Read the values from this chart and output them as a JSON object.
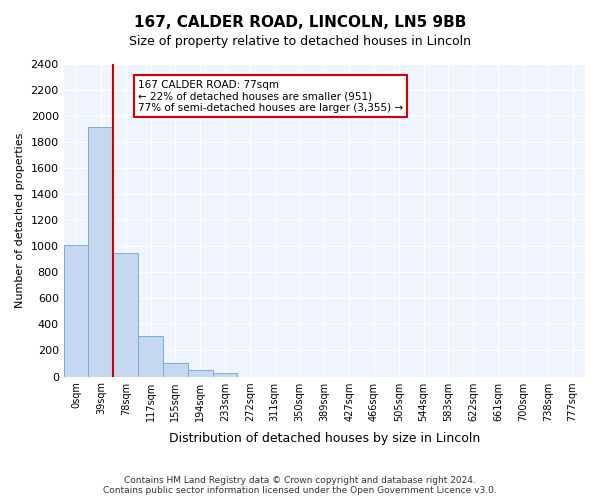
{
  "title_line1": "167, CALDER ROAD, LINCOLN, LN5 9BB",
  "title_line2": "Size of property relative to detached houses in Lincoln",
  "xlabel": "Distribution of detached houses by size in Lincoln",
  "ylabel": "Number of detached properties",
  "categories": [
    "0sqm",
    "39sqm",
    "78sqm",
    "117sqm",
    "155sqm",
    "194sqm",
    "233sqm",
    "272sqm",
    "311sqm",
    "350sqm",
    "389sqm",
    "427sqm",
    "466sqm",
    "505sqm",
    "544sqm",
    "583sqm",
    "622sqm",
    "661sqm",
    "700sqm",
    "738sqm",
    "777sqm"
  ],
  "bar_values": [
    1010,
    1920,
    950,
    310,
    105,
    50,
    25,
    0,
    0,
    0,
    0,
    0,
    0,
    0,
    0,
    0,
    0,
    0,
    0,
    0,
    0
  ],
  "bar_color": "#c5d8f0",
  "bar_edge_color": "#7aaed6",
  "red_line_x": 2,
  "red_line_color": "#cc0000",
  "annotation_text": "167 CALDER ROAD: 77sqm\n← 22% of detached houses are smaller (951)\n77% of semi-detached houses are larger (3,355) →",
  "annotation_box_color": "#ffffff",
  "annotation_box_edge": "#cc0000",
  "ylim": [
    0,
    2400
  ],
  "yticks": [
    0,
    200,
    400,
    600,
    800,
    1000,
    1200,
    1400,
    1600,
    1800,
    2000,
    2200,
    2400
  ],
  "bg_color": "#f0f4ff",
  "grid_color": "#ffffff",
  "footer_line1": "Contains HM Land Registry data © Crown copyright and database right 2024.",
  "footer_line2": "Contains public sector information licensed under the Open Government Licence v3.0."
}
